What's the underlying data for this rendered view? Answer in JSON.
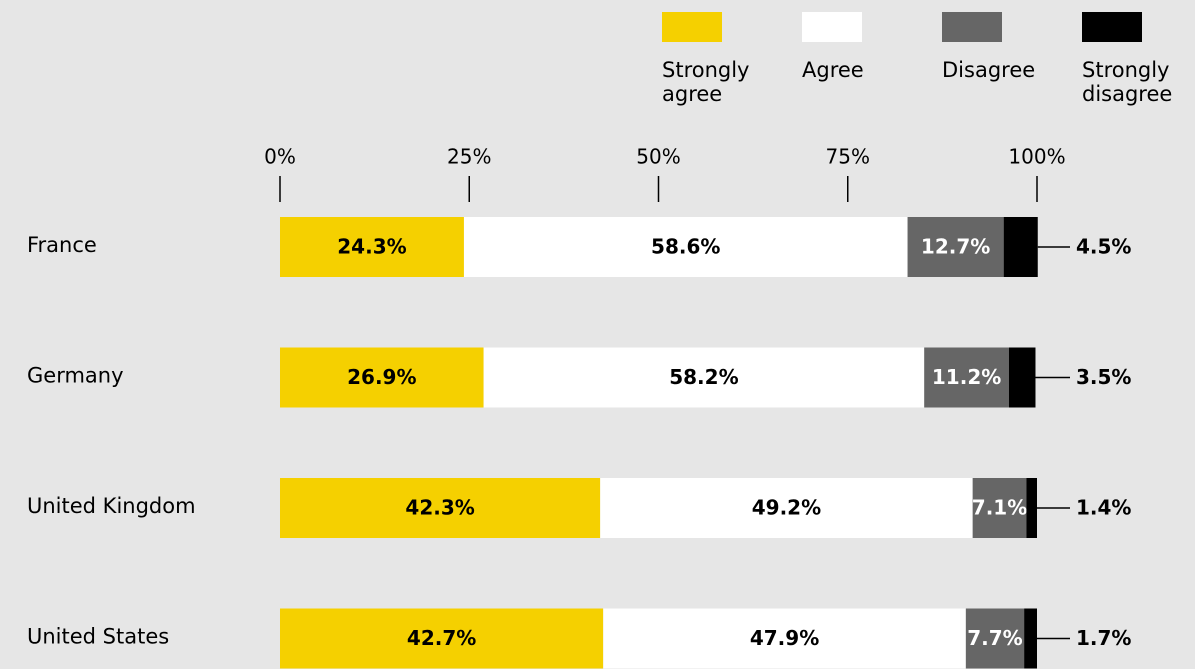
{
  "chart_data": {
    "type": "stacked_bar_horizontal",
    "categories": [
      "France",
      "Germany",
      "United Kingdom",
      "United States"
    ],
    "series": [
      {
        "name": "Strongly agree",
        "color": "#f5d000",
        "values": [
          24.3,
          26.9,
          42.3,
          42.7
        ],
        "value_labels": [
          "24.3%",
          "26.9%",
          "42.3%",
          "42.7%"
        ]
      },
      {
        "name": "Agree",
        "color": "#ffffff",
        "values": [
          58.6,
          58.2,
          49.2,
          47.9
        ],
        "value_labels": [
          "58.6%",
          "58.2%",
          "49.2%",
          "47.9%"
        ]
      },
      {
        "name": "Disagree",
        "color": "#666666",
        "values": [
          12.7,
          11.2,
          7.1,
          7.7
        ],
        "value_labels": [
          "12.7%",
          "11.2%",
          "7.1%",
          "7.7%"
        ]
      },
      {
        "name": "Strongly disagree",
        "color": "#000000",
        "values": [
          4.5,
          3.5,
          1.4,
          1.7
        ],
        "value_labels": [
          "4.5%",
          "3.5%",
          "1.4%",
          "1.7%"
        ]
      }
    ],
    "xlim": [
      0,
      100
    ],
    "xticks": [
      {
        "value": 0,
        "label": "0%"
      },
      {
        "value": 25,
        "label": "25%"
      },
      {
        "value": 50,
        "label": "50%"
      },
      {
        "value": 75,
        "label": "75%"
      },
      {
        "value": 100,
        "label": "100%"
      }
    ],
    "legend": "top-right"
  }
}
